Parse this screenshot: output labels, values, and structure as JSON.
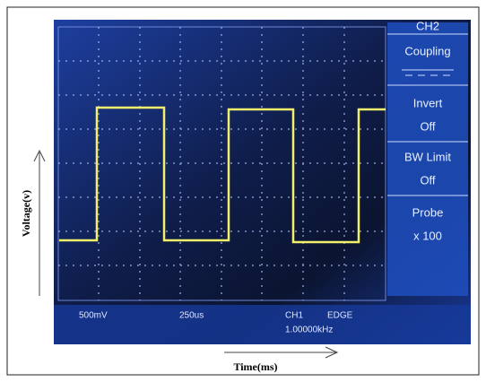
{
  "axis_labels": {
    "y": "Voltage(v)",
    "x": "Time(ms)"
  },
  "menu": {
    "title": "CH2",
    "items": [
      {
        "label": "Coupling"
      },
      {
        "label": "Invert",
        "value": "Off"
      },
      {
        "label": "BW Limit",
        "value": "Off"
      },
      {
        "label": "Probe",
        "value": "x 100"
      }
    ]
  },
  "status": {
    "ch1_scale": "500mV",
    "time_base": "250us",
    "trigger_source": "CH1",
    "trigger_type": "EDGE",
    "frequency": "1.00000kHz"
  }
}
